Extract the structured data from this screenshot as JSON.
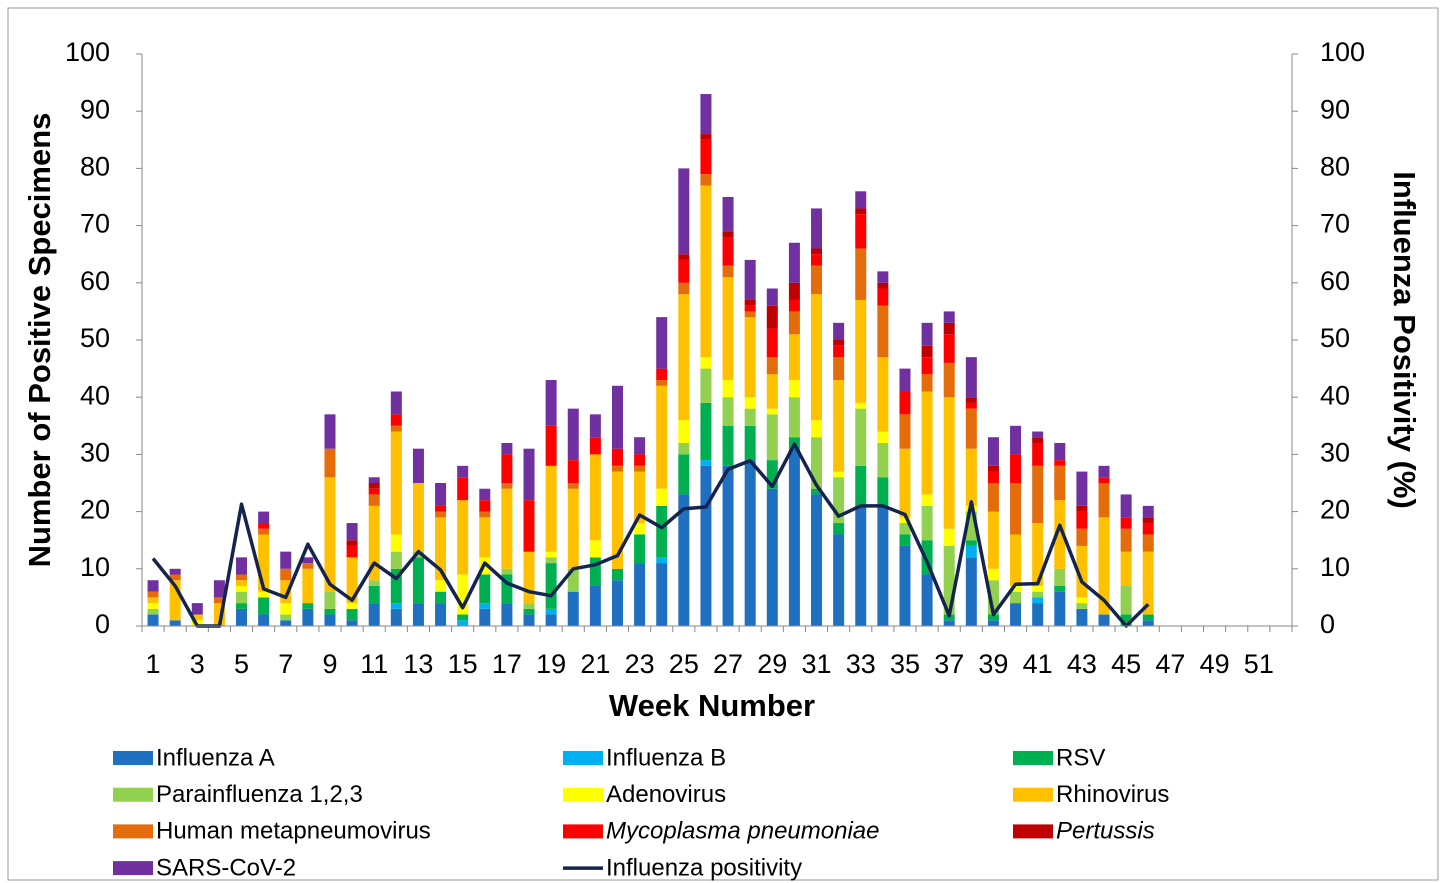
{
  "chart_data": {
    "type": "bar",
    "stacked": true,
    "x_label": "Week Number",
    "y_label": "Number of Positive Specimens",
    "y2_label": "Influenza Positivity (%)",
    "ylim": [
      0,
      100
    ],
    "yticks": [
      0,
      10,
      20,
      30,
      40,
      50,
      60,
      70,
      80,
      90,
      100
    ],
    "y2lim": [
      0,
      100
    ],
    "y2ticks": [
      0,
      10,
      20,
      30,
      40,
      50,
      60,
      70,
      80,
      90,
      100
    ],
    "grid": false,
    "legend": "bottom",
    "categories": [
      "1",
      null,
      "3",
      null,
      "5",
      null,
      "7",
      null,
      "9",
      null,
      "11",
      null,
      "13",
      null,
      "15",
      null,
      "17",
      null,
      "19",
      null,
      "21",
      null,
      "23",
      null,
      "25",
      null,
      "27",
      null,
      "29",
      null,
      "31",
      null,
      "33",
      null,
      "35",
      null,
      "37",
      null,
      "39",
      null,
      "41",
      null,
      "43",
      null,
      "45",
      null,
      "47",
      null,
      "49",
      null,
      "51",
      null
    ],
    "series": [
      {
        "name": "Influenza A",
        "color": "#1f70c1",
        "values": [
          2,
          1,
          0,
          0,
          3,
          2,
          1,
          3,
          2,
          1,
          4,
          3,
          4,
          4,
          0,
          3,
          4,
          2,
          2,
          6,
          7,
          8,
          11,
          11,
          23,
          28,
          28,
          29,
          24,
          31,
          23,
          16,
          21,
          21,
          14,
          9,
          1,
          12,
          1,
          4,
          4,
          6,
          3,
          2,
          0,
          1,
          null,
          null,
          null,
          null,
          null,
          null
        ]
      },
      {
        "name": "Influenza B",
        "color": "#00b0f0",
        "values": [
          0,
          0,
          0,
          0,
          0,
          0,
          0,
          0,
          0,
          0,
          0,
          1,
          0,
          0,
          1,
          1,
          0,
          0,
          1,
          0,
          0,
          0,
          0,
          1,
          0,
          1,
          0,
          0,
          0,
          0,
          0,
          0,
          0,
          0,
          0,
          0,
          0,
          2,
          0,
          0,
          1,
          0,
          0,
          0,
          0,
          0,
          null,
          null,
          null,
          null,
          null,
          null
        ]
      },
      {
        "name": "RSV",
        "color": "#00b050",
        "values": [
          0,
          0,
          0,
          0,
          1,
          3,
          0,
          1,
          1,
          2,
          3,
          6,
          8,
          2,
          1,
          5,
          5,
          1,
          8,
          0,
          5,
          2,
          5,
          9,
          7,
          10,
          7,
          6,
          5,
          2,
          1,
          2,
          7,
          5,
          2,
          6,
          1,
          1,
          1,
          0,
          0,
          1,
          0,
          0,
          2,
          1,
          null,
          null,
          null,
          null,
          null,
          null
        ]
      },
      {
        "name": "Parainfluenza 1,2,3",
        "color": "#92d050",
        "values": [
          1,
          0,
          0,
          0,
          2,
          0,
          1,
          0,
          3,
          0,
          1,
          3,
          1,
          0,
          0,
          0,
          1,
          1,
          1,
          4,
          0,
          0,
          0,
          0,
          2,
          6,
          5,
          3,
          8,
          7,
          9,
          8,
          10,
          6,
          2,
          6,
          12,
          5,
          6,
          2,
          1,
          3,
          1,
          0,
          5,
          0,
          null,
          null,
          null,
          null,
          null,
          null
        ]
      },
      {
        "name": "Adenovirus",
        "color": "#ffff00",
        "values": [
          1,
          0,
          1,
          0,
          1,
          1,
          2,
          0,
          0,
          1,
          0,
          3,
          0,
          2,
          7,
          3,
          0,
          0,
          1,
          0,
          3,
          0,
          2,
          3,
          4,
          2,
          3,
          2,
          1,
          3,
          3,
          1,
          1,
          2,
          1,
          2,
          3,
          1,
          2,
          1,
          1,
          0,
          1,
          0,
          0,
          0,
          null,
          null,
          null,
          null,
          null,
          null
        ]
      },
      {
        "name": "Rhinovirus",
        "color": "#ffc000",
        "values": [
          1,
          7,
          1,
          4,
          1,
          10,
          4,
          6,
          20,
          8,
          13,
          18,
          12,
          11,
          13,
          7,
          14,
          9,
          15,
          14,
          15,
          17,
          9,
          18,
          22,
          30,
          18,
          14,
          6,
          8,
          22,
          16,
          18,
          13,
          12,
          18,
          23,
          10,
          10,
          9,
          11,
          12,
          9,
          17,
          6,
          11,
          null,
          null,
          null,
          null,
          null,
          null
        ]
      },
      {
        "name": "Human metapneumovirus",
        "color": "#e46c0a",
        "values": [
          1,
          1,
          0,
          1,
          1,
          1,
          2,
          1,
          5,
          0,
          2,
          1,
          0,
          1,
          0,
          1,
          1,
          0,
          0,
          1,
          0,
          1,
          1,
          1,
          2,
          2,
          2,
          1,
          3,
          4,
          5,
          4,
          9,
          9,
          6,
          3,
          6,
          7,
          5,
          9,
          10,
          6,
          3,
          6,
          4,
          3,
          null,
          null,
          null,
          null,
          null,
          null
        ]
      },
      {
        "name": "Mycoplasma pneumoniae",
        "italic": true,
        "color": "#ff0000",
        "values": [
          0,
          0,
          0,
          0,
          0,
          1,
          0,
          0,
          0,
          2,
          1,
          2,
          0,
          1,
          4,
          2,
          5,
          9,
          7,
          4,
          3,
          3,
          2,
          2,
          4,
          6,
          5,
          1,
          5,
          2,
          2,
          2,
          6,
          3,
          4,
          3,
          5,
          1,
          2,
          5,
          4,
          1,
          3,
          1,
          2,
          2,
          null,
          null,
          null,
          null,
          null,
          null
        ]
      },
      {
        "name": "Pertussis",
        "italic": true,
        "color": "#c00000",
        "values": [
          0,
          0,
          0,
          0,
          0,
          0,
          0,
          0,
          0,
          1,
          1,
          0,
          0,
          0,
          0,
          0,
          0,
          0,
          0,
          0,
          0,
          0,
          0,
          0,
          1,
          1,
          1,
          1,
          4,
          3,
          1,
          1,
          1,
          1,
          0,
          2,
          2,
          1,
          1,
          0,
          1,
          0,
          1,
          0,
          0,
          1,
          null,
          null,
          null,
          null,
          null,
          null
        ]
      },
      {
        "name": "SARS-CoV-2",
        "color": "#7030a0",
        "values": [
          2,
          1,
          2,
          3,
          3,
          2,
          3,
          1,
          6,
          3,
          1,
          4,
          6,
          4,
          2,
          2,
          2,
          9,
          8,
          9,
          4,
          11,
          3,
          9,
          15,
          7,
          6,
          7,
          3,
          7,
          7,
          3,
          3,
          2,
          4,
          4,
          2,
          7,
          5,
          5,
          1,
          3,
          6,
          2,
          4,
          2,
          null,
          null,
          null,
          null,
          null,
          null
        ]
      },
      {
        "name": "Influenza positivity",
        "type": "line",
        "axis": "y2",
        "color": "#14244e",
        "values": [
          11.8,
          7,
          0,
          0,
          21.3,
          6.5,
          5,
          14.3,
          7.3,
          4.5,
          11,
          8.3,
          13,
          9.8,
          3.2,
          11,
          7.5,
          6,
          5.3,
          10,
          10.7,
          12.3,
          19.4,
          17.2,
          20.5,
          20.8,
          27.4,
          28.9,
          24.4,
          31.8,
          24.6,
          19.2,
          21,
          21,
          19.5,
          11.2,
          1.8,
          21.7,
          2,
          7.3,
          7.4,
          17.6,
          7.7,
          4.5,
          0,
          3.8,
          null,
          null,
          null,
          null,
          null,
          null
        ]
      }
    ]
  }
}
